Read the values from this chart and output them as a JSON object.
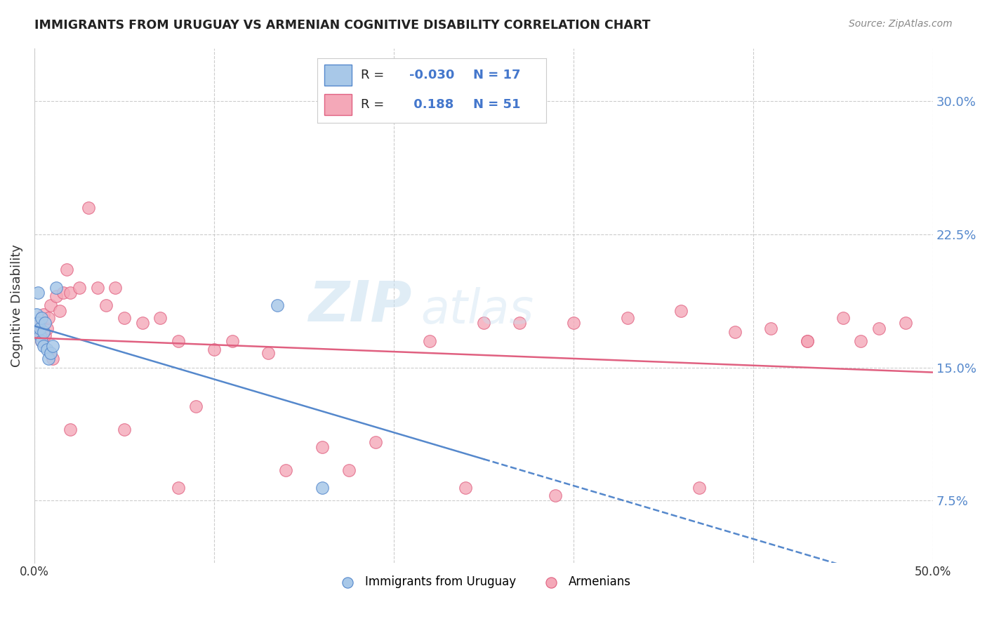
{
  "title": "IMMIGRANTS FROM URUGUAY VS ARMENIAN COGNITIVE DISABILITY CORRELATION CHART",
  "source": "Source: ZipAtlas.com",
  "ylabel": "Cognitive Disability",
  "xlim": [
    0.0,
    0.5
  ],
  "ylim": [
    0.04,
    0.33
  ],
  "yticks": [
    0.075,
    0.15,
    0.225,
    0.3
  ],
  "ytick_labels": [
    "7.5%",
    "15.0%",
    "22.5%",
    "30.0%"
  ],
  "xticks": [
    0.0,
    0.1,
    0.2,
    0.3,
    0.4,
    0.5
  ],
  "xtick_labels": [
    "0.0%",
    "",
    "",
    "",
    "",
    "50.0%"
  ],
  "watermark": "ZIPAtlas",
  "color_blue": "#a8c8e8",
  "color_pink": "#f4a8b8",
  "line_blue": "#5588cc",
  "line_pink": "#e06080",
  "r_blue": -0.03,
  "n_blue": 17,
  "r_pink": 0.188,
  "n_pink": 51,
  "blue_x": [
    0.001,
    0.002,
    0.002,
    0.003,
    0.003,
    0.004,
    0.004,
    0.005,
    0.005,
    0.006,
    0.007,
    0.008,
    0.009,
    0.01,
    0.012,
    0.135,
    0.16
  ],
  "blue_y": [
    0.18,
    0.192,
    0.175,
    0.168,
    0.172,
    0.165,
    0.178,
    0.162,
    0.17,
    0.175,
    0.16,
    0.155,
    0.158,
    0.162,
    0.195,
    0.185,
    0.082
  ],
  "pink_x": [
    0.002,
    0.003,
    0.004,
    0.005,
    0.006,
    0.007,
    0.008,
    0.009,
    0.01,
    0.012,
    0.014,
    0.016,
    0.018,
    0.02,
    0.025,
    0.03,
    0.035,
    0.04,
    0.045,
    0.05,
    0.06,
    0.07,
    0.08,
    0.09,
    0.1,
    0.11,
    0.13,
    0.16,
    0.19,
    0.22,
    0.25,
    0.27,
    0.3,
    0.33,
    0.36,
    0.39,
    0.41,
    0.43,
    0.45,
    0.47,
    0.485,
    0.02,
    0.05,
    0.08,
    0.14,
    0.175,
    0.24,
    0.29,
    0.37,
    0.43,
    0.46
  ],
  "pink_y": [
    0.17,
    0.175,
    0.165,
    0.18,
    0.168,
    0.172,
    0.178,
    0.185,
    0.155,
    0.19,
    0.182,
    0.192,
    0.205,
    0.192,
    0.195,
    0.24,
    0.195,
    0.185,
    0.195,
    0.178,
    0.175,
    0.178,
    0.165,
    0.128,
    0.16,
    0.165,
    0.158,
    0.105,
    0.108,
    0.165,
    0.175,
    0.175,
    0.175,
    0.178,
    0.182,
    0.17,
    0.172,
    0.165,
    0.178,
    0.172,
    0.175,
    0.115,
    0.115,
    0.082,
    0.092,
    0.092,
    0.082,
    0.078,
    0.082,
    0.165,
    0.165
  ]
}
